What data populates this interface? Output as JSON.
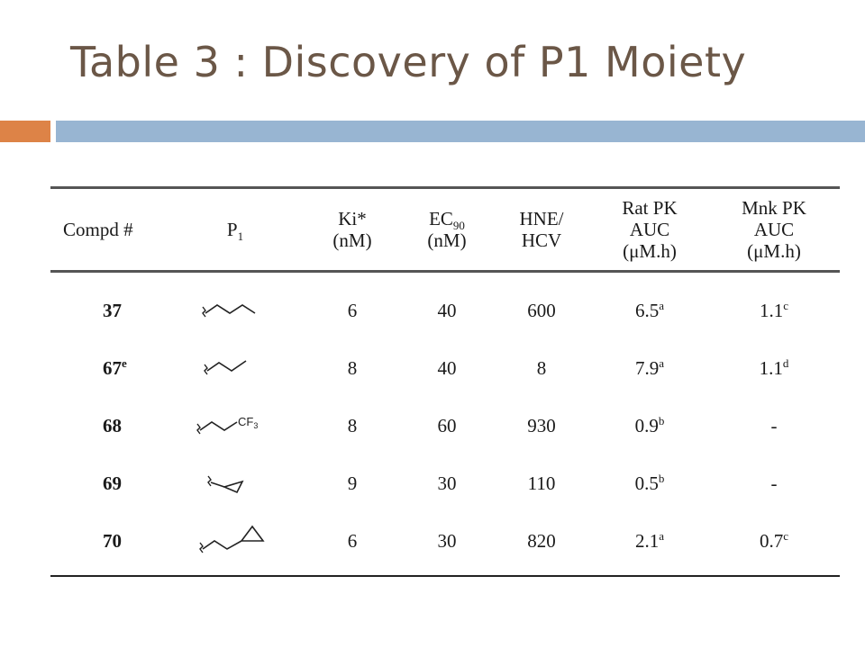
{
  "slide": {
    "title": "Table 3 : Discovery of P1 Moiety",
    "colors": {
      "title": "#6b5747",
      "accent_orange": "#dd8347",
      "accent_blue": "#98b5d2"
    }
  },
  "table": {
    "headers": {
      "compd": "Compd #",
      "p1_main": "P",
      "p1_sub": "1",
      "ki_line1": "Ki*",
      "ki_line2": "(nM)",
      "ec_main": "EC",
      "ec_sub": "90",
      "ec_line2": "(nM)",
      "hne_line1": "HNE/",
      "hne_line2": "HCV",
      "rat_line1": "Rat PK",
      "rat_line2": "AUC",
      "rat_line3": "(μM.h)",
      "mnk_line1": "Mnk PK",
      "mnk_line2": "AUC",
      "mnk_line3": "(μM.h)"
    },
    "rows": [
      {
        "compd": "37",
        "compd_sup": "",
        "p1_icon": "n-butyl-chain-structure",
        "ki": "6",
        "ec90": "40",
        "hne_hcv": "600",
        "rat_pk": "6.5",
        "rat_sup": "a",
        "mnk_pk": "1.1",
        "mnk_sup": "c"
      },
      {
        "compd": "67",
        "compd_sup": "e",
        "p1_icon": "n-propyl-chain-structure",
        "ki": "8",
        "ec90": "40",
        "hne_hcv": "8",
        "rat_pk": "7.9",
        "rat_sup": "a",
        "mnk_pk": "1.1",
        "mnk_sup": "d"
      },
      {
        "compd": "68",
        "compd_sup": "",
        "p1_icon": "trifluoropropyl-structure",
        "cf3_label": "CF3",
        "ki": "8",
        "ec90": "60",
        "hne_hcv": "930",
        "rat_pk": "0.9",
        "rat_sup": "b",
        "mnk_pk": "-",
        "mnk_sup": ""
      },
      {
        "compd": "69",
        "compd_sup": "",
        "p1_icon": "cyclopropylmethyl-structure",
        "ki": "9",
        "ec90": "30",
        "hne_hcv": "110",
        "rat_pk": "0.5",
        "rat_sup": "b",
        "mnk_pk": "-",
        "mnk_sup": ""
      },
      {
        "compd": "70",
        "compd_sup": "",
        "p1_icon": "cyclopropylethyl-structure",
        "ki": "6",
        "ec90": "30",
        "hne_hcv": "820",
        "rat_pk": "2.1",
        "rat_sup": "a",
        "mnk_pk": "0.7",
        "mnk_sup": "c"
      }
    ]
  }
}
